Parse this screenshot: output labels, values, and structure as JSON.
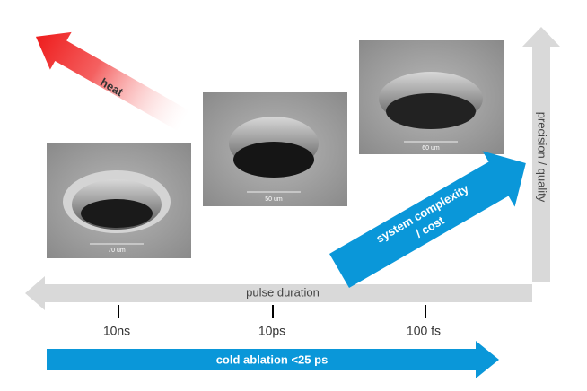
{
  "heat": "heat",
  "images": [
    {
      "scale": "70 um"
    },
    {
      "scale": "50 um"
    },
    {
      "scale": "60 um"
    }
  ],
  "pulse_duration": "pulse duration",
  "ticks": [
    "10ns",
    "10ps",
    "100 fs"
  ],
  "cold_ablation": "cold ablation <25 ps",
  "complexity": [
    "system complexity",
    "/ cost"
  ],
  "precision": "precision / quality"
}
